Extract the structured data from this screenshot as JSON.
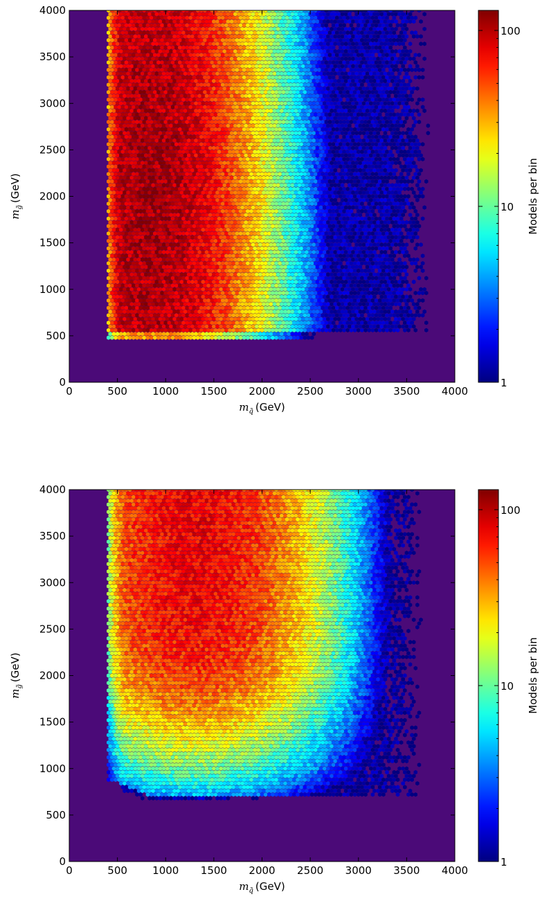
{
  "chart_data": [
    {
      "type": "heatmap",
      "plot_kind": "hexbin",
      "xlabel_symbol": "m",
      "xlabel_sub": "q̃",
      "xlabel_unit": "(GeV)",
      "ylabel_symbol": "m",
      "ylabel_sub": "g̃",
      "ylabel_unit": "(GeV)",
      "xlim": [
        0,
        4000
      ],
      "ylim": [
        0,
        4000
      ],
      "xticks": [
        "0",
        "500",
        "1000",
        "1500",
        "2000",
        "2500",
        "3000",
        "3500",
        "4000"
      ],
      "yticks": [
        "0",
        "500",
        "1000",
        "1500",
        "2000",
        "2500",
        "3000",
        "3500",
        "4000"
      ],
      "background_color": "#4b0a78",
      "colorbar": {
        "label": "Models per bin",
        "scale": "log",
        "range": [
          1,
          130
        ],
        "ticks": [
          "1",
          "10",
          "100"
        ],
        "colormap": "jet"
      },
      "distribution": {
        "x_min": 400,
        "x_max": 3900,
        "y_min": 500,
        "y_max": 4000,
        "peak_x": 850,
        "peak_y": 2000,
        "peak_value": 110
      }
    },
    {
      "type": "heatmap",
      "plot_kind": "hexbin",
      "xlabel_symbol": "m",
      "xlabel_sub": "q̃",
      "xlabel_unit": "(GeV)",
      "ylabel_symbol": "m",
      "ylabel_sub": "g̃",
      "ylabel_unit": "(GeV)",
      "xlim": [
        0,
        4000
      ],
      "ylim": [
        0,
        4000
      ],
      "xticks": [
        "0",
        "500",
        "1000",
        "1500",
        "2000",
        "2500",
        "3000",
        "3500",
        "4000"
      ],
      "yticks": [
        "0",
        "500",
        "1000",
        "1500",
        "2000",
        "2500",
        "3000",
        "3500",
        "4000"
      ],
      "background_color": "#4b0a78",
      "colorbar": {
        "label": "Models per bin",
        "scale": "log",
        "range": [
          1,
          130
        ],
        "ticks": [
          "1",
          "10",
          "100"
        ],
        "colormap": "jet"
      },
      "distribution": {
        "x_min": 400,
        "x_max": 3900,
        "y_min": 650,
        "y_max": 4000,
        "peak_x": 1300,
        "peak_y": 2600,
        "peak_value": 70
      }
    }
  ]
}
